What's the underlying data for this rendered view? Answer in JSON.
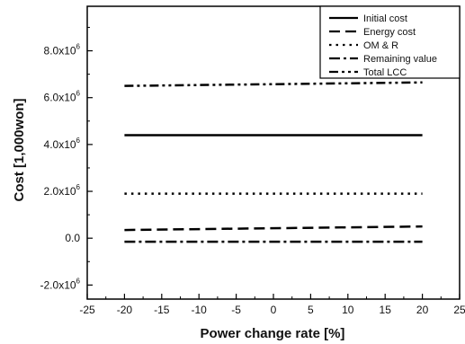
{
  "chart_data": {
    "type": "line",
    "title": "",
    "xlabel": "Power change rate [%]",
    "ylabel": "Cost [1,000won]",
    "xlim": [
      -25,
      25
    ],
    "ylim": [
      -2.6,
      9.9
    ],
    "y_unit_multiplier": 1000000,
    "x_ticks": [
      -25,
      -20,
      -15,
      -10,
      -5,
      0,
      5,
      10,
      15,
      20,
      25
    ],
    "x_tick_labels": [
      "-25",
      "-20",
      "-15",
      "-10",
      "-5",
      "0",
      "5",
      "10",
      "15",
      "20",
      "25"
    ],
    "y_ticks": [
      -2,
      0,
      2,
      4,
      6,
      8
    ],
    "y_tick_labels": [
      {
        "mantissa": "-2.0x10",
        "exp": "6"
      },
      {
        "mantissa": "0.0",
        "exp": ""
      },
      {
        "mantissa": "2.0x10",
        "exp": "6"
      },
      {
        "mantissa": "4.0x10",
        "exp": "6"
      },
      {
        "mantissa": "6.0x10",
        "exp": "6"
      },
      {
        "mantissa": "8.0x10",
        "exp": "6"
      }
    ],
    "grid": false,
    "legend_position": "top-right",
    "series": [
      {
        "name": "Initial cost",
        "style": "solid",
        "x": [
          -20,
          20
        ],
        "y": [
          4.4,
          4.4
        ]
      },
      {
        "name": "Energy cost",
        "style": "dash",
        "x": [
          -20,
          20
        ],
        "y": [
          0.35,
          0.5
        ]
      },
      {
        "name": "OM & R",
        "style": "dot",
        "x": [
          -20,
          20
        ],
        "y": [
          1.9,
          1.9
        ]
      },
      {
        "name": "Remaining value",
        "style": "dashdot",
        "x": [
          -20,
          20
        ],
        "y": [
          -0.15,
          -0.15
        ]
      },
      {
        "name": "Total LCC",
        "style": "dashdotdot",
        "x": [
          -20,
          20
        ],
        "y": [
          6.5,
          6.65
        ]
      }
    ]
  }
}
